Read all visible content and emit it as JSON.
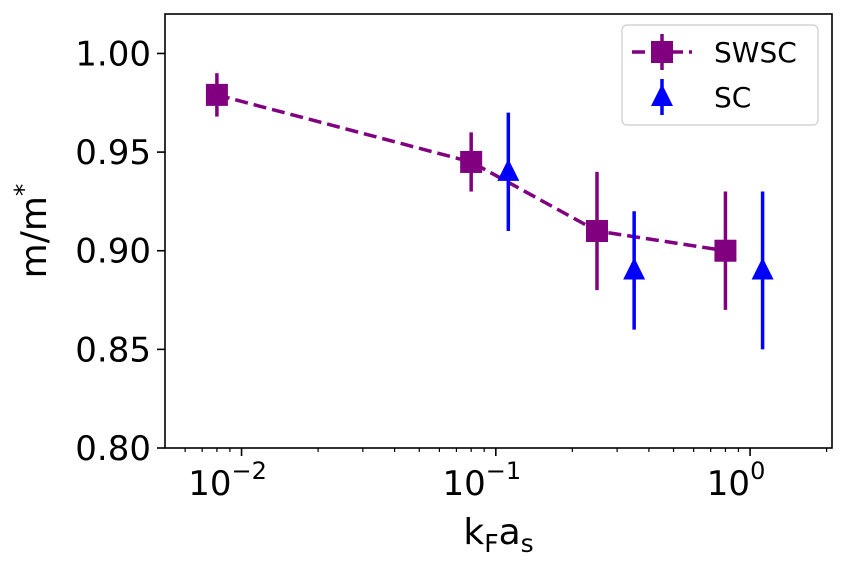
{
  "chart_data": {
    "type": "scatter",
    "xlabel": "k_F a_s",
    "ylabel": "m/m*",
    "xscale": "log",
    "xlim": [
      0.005,
      2.1
    ],
    "ylim": [
      0.8,
      1.02
    ],
    "yticks": [
      "0.80",
      "0.85",
      "0.90",
      "0.95",
      "1.00"
    ],
    "xticks": [
      {
        "value": 0.01,
        "base": "10",
        "exp": "−2"
      },
      {
        "value": 0.1,
        "base": "10",
        "exp": "−1"
      },
      {
        "value": 1,
        "base": "10",
        "exp": "0"
      }
    ],
    "grid": false,
    "legend_position": "top-right",
    "series": [
      {
        "name": "SWSC",
        "color": "#800080",
        "marker": "square",
        "line": "dashed",
        "points": [
          {
            "x": 0.008,
            "y": 0.979,
            "err_low": 0.011,
            "err_high": 0.011
          },
          {
            "x": 0.08,
            "y": 0.945,
            "err_low": 0.015,
            "err_high": 0.015
          },
          {
            "x": 0.25,
            "y": 0.91,
            "err_low": 0.03,
            "err_high": 0.03
          },
          {
            "x": 0.8,
            "y": 0.9,
            "err_low": 0.03,
            "err_high": 0.03
          }
        ]
      },
      {
        "name": "SC",
        "color": "#0000ff",
        "marker": "triangle",
        "line": "none",
        "points": [
          {
            "x": 0.112,
            "y": 0.94,
            "err_low": 0.03,
            "err_high": 0.03
          },
          {
            "x": 0.35,
            "y": 0.89,
            "err_low": 0.03,
            "err_high": 0.03
          },
          {
            "x": 1.12,
            "y": 0.89,
            "err_low": 0.04,
            "err_high": 0.04
          }
        ]
      }
    ]
  }
}
